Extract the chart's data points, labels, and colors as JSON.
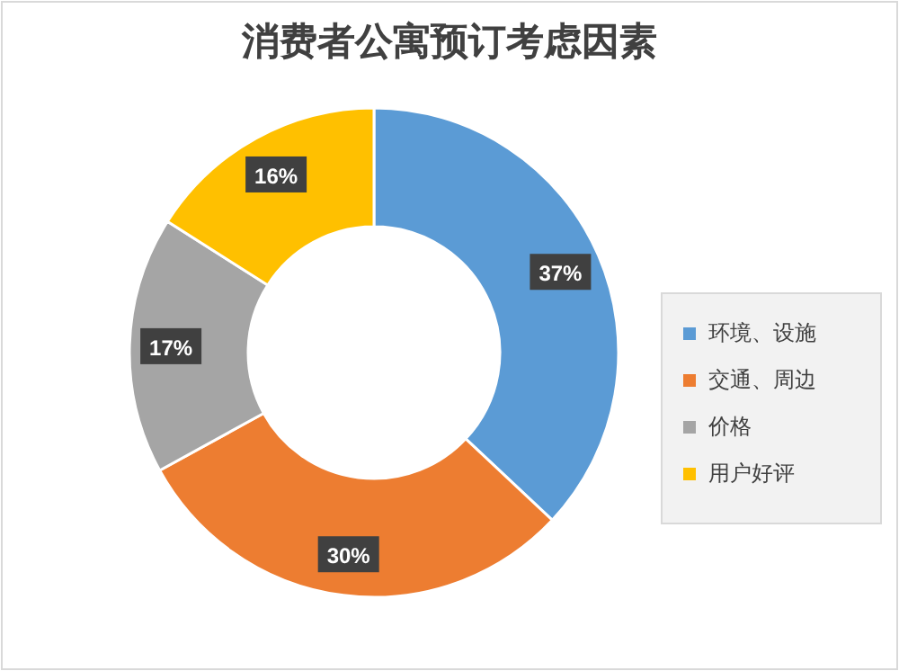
{
  "chart_data": {
    "type": "donut",
    "title": "消费者公寓预订考虑因素",
    "categories": [
      "环境、设施",
      "交通、周边",
      "价格",
      "用户好评"
    ],
    "values": [
      37,
      30,
      17,
      16
    ],
    "colors": [
      "#5b9bd5",
      "#ed7d31",
      "#a5a5a5",
      "#ffc000"
    ],
    "value_labels": [
      "37%",
      "30%",
      "17%",
      "16%"
    ],
    "legend": "right"
  }
}
